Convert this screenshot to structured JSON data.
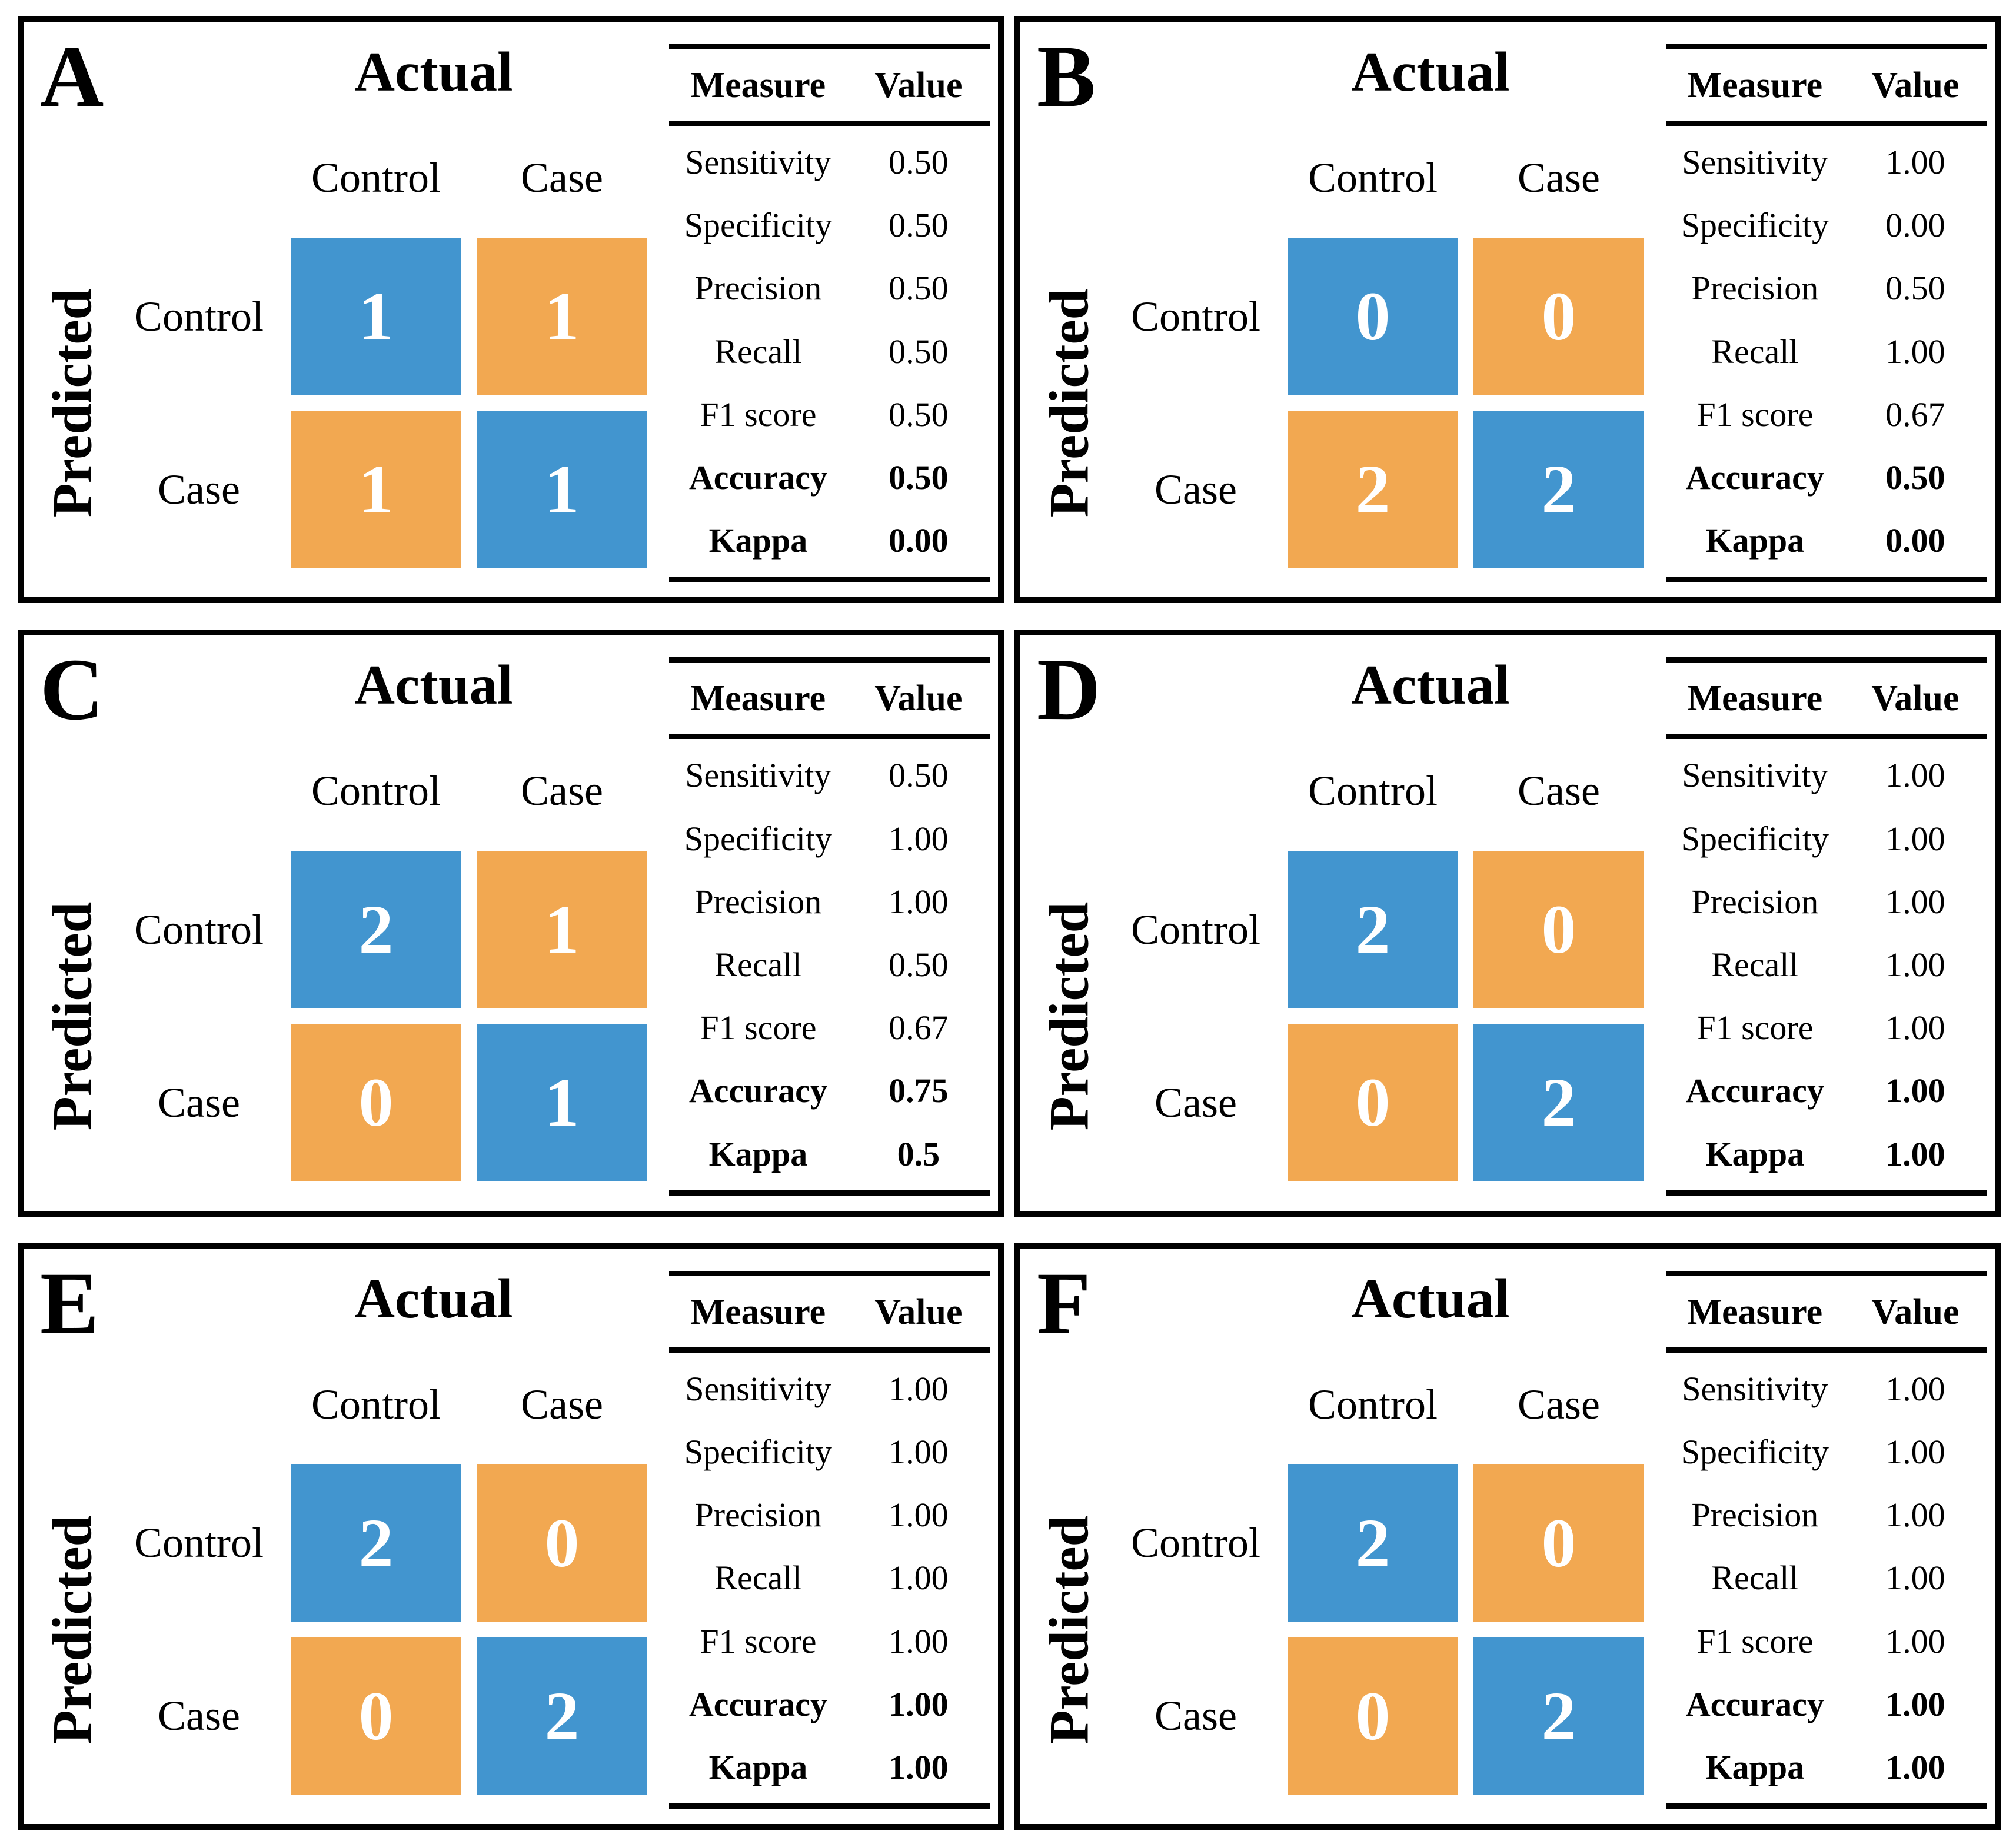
{
  "colors": {
    "diagonal_cell": "#4295CF",
    "off_diagonal_cell": "#F2A851",
    "cell_text": "#FFFFFF",
    "text": "#000000",
    "panel_border": "#000000"
  },
  "table_header": {
    "measure": "Measure",
    "value": "Value"
  },
  "chart_data": [
    {
      "type": "heatmap",
      "panel_letter": "A",
      "xlabel": "Actual",
      "ylabel": "Predicted",
      "categories": [
        "Control",
        "Case"
      ],
      "matrix": [
        [
          1,
          1
        ],
        [
          1,
          1
        ]
      ],
      "measures": [
        {
          "label": "Sensitivity",
          "value": "0.50",
          "bold": false
        },
        {
          "label": "Specificity",
          "value": "0.50",
          "bold": false
        },
        {
          "label": "Precision",
          "value": "0.50",
          "bold": false
        },
        {
          "label": "Recall",
          "value": "0.50",
          "bold": false
        },
        {
          "label": "F1 score",
          "value": "0.50",
          "bold": false
        },
        {
          "label": "Accuracy",
          "value": "0.50",
          "bold": true
        },
        {
          "label": "Kappa",
          "value": "0.00",
          "bold": true
        }
      ]
    },
    {
      "type": "heatmap",
      "panel_letter": "B",
      "xlabel": "Actual",
      "ylabel": "Predicted",
      "categories": [
        "Control",
        "Case"
      ],
      "matrix": [
        [
          0,
          0
        ],
        [
          2,
          2
        ]
      ],
      "measures": [
        {
          "label": "Sensitivity",
          "value": "1.00",
          "bold": false
        },
        {
          "label": "Specificity",
          "value": "0.00",
          "bold": false
        },
        {
          "label": "Precision",
          "value": "0.50",
          "bold": false
        },
        {
          "label": "Recall",
          "value": "1.00",
          "bold": false
        },
        {
          "label": "F1 score",
          "value": "0.67",
          "bold": false
        },
        {
          "label": "Accuracy",
          "value": "0.50",
          "bold": true
        },
        {
          "label": "Kappa",
          "value": "0.00",
          "bold": true
        }
      ]
    },
    {
      "type": "heatmap",
      "panel_letter": "C",
      "xlabel": "Actual",
      "ylabel": "Predicted",
      "categories": [
        "Control",
        "Case"
      ],
      "matrix": [
        [
          2,
          1
        ],
        [
          0,
          1
        ]
      ],
      "measures": [
        {
          "label": "Sensitivity",
          "value": "0.50",
          "bold": false
        },
        {
          "label": "Specificity",
          "value": "1.00",
          "bold": false
        },
        {
          "label": "Precision",
          "value": "1.00",
          "bold": false
        },
        {
          "label": "Recall",
          "value": "0.50",
          "bold": false
        },
        {
          "label": "F1 score",
          "value": "0.67",
          "bold": false
        },
        {
          "label": "Accuracy",
          "value": "0.75",
          "bold": true
        },
        {
          "label": "Kappa",
          "value": "0.5",
          "bold": true
        }
      ]
    },
    {
      "type": "heatmap",
      "panel_letter": "D",
      "xlabel": "Actual",
      "ylabel": "Predicted",
      "categories": [
        "Control",
        "Case"
      ],
      "matrix": [
        [
          2,
          0
        ],
        [
          0,
          2
        ]
      ],
      "measures": [
        {
          "label": "Sensitivity",
          "value": "1.00",
          "bold": false
        },
        {
          "label": "Specificity",
          "value": "1.00",
          "bold": false
        },
        {
          "label": "Precision",
          "value": "1.00",
          "bold": false
        },
        {
          "label": "Recall",
          "value": "1.00",
          "bold": false
        },
        {
          "label": "F1 score",
          "value": "1.00",
          "bold": false
        },
        {
          "label": "Accuracy",
          "value": "1.00",
          "bold": true
        },
        {
          "label": "Kappa",
          "value": "1.00",
          "bold": true
        }
      ]
    },
    {
      "type": "heatmap",
      "panel_letter": "E",
      "xlabel": "Actual",
      "ylabel": "Predicted",
      "categories": [
        "Control",
        "Case"
      ],
      "matrix": [
        [
          2,
          0
        ],
        [
          0,
          2
        ]
      ],
      "measures": [
        {
          "label": "Sensitivity",
          "value": "1.00",
          "bold": false
        },
        {
          "label": "Specificity",
          "value": "1.00",
          "bold": false
        },
        {
          "label": "Precision",
          "value": "1.00",
          "bold": false
        },
        {
          "label": "Recall",
          "value": "1.00",
          "bold": false
        },
        {
          "label": "F1 score",
          "value": "1.00",
          "bold": false
        },
        {
          "label": "Accuracy",
          "value": "1.00",
          "bold": true
        },
        {
          "label": "Kappa",
          "value": "1.00",
          "bold": true
        }
      ]
    },
    {
      "type": "heatmap",
      "panel_letter": "F",
      "xlabel": "Actual",
      "ylabel": "Predicted",
      "categories": [
        "Control",
        "Case"
      ],
      "matrix": [
        [
          2,
          0
        ],
        [
          0,
          2
        ]
      ],
      "measures": [
        {
          "label": "Sensitivity",
          "value": "1.00",
          "bold": false
        },
        {
          "label": "Specificity",
          "value": "1.00",
          "bold": false
        },
        {
          "label": "Precision",
          "value": "1.00",
          "bold": false
        },
        {
          "label": "Recall",
          "value": "1.00",
          "bold": false
        },
        {
          "label": "F1 score",
          "value": "1.00",
          "bold": false
        },
        {
          "label": "Accuracy",
          "value": "1.00",
          "bold": true
        },
        {
          "label": "Kappa",
          "value": "1.00",
          "bold": true
        }
      ]
    }
  ]
}
